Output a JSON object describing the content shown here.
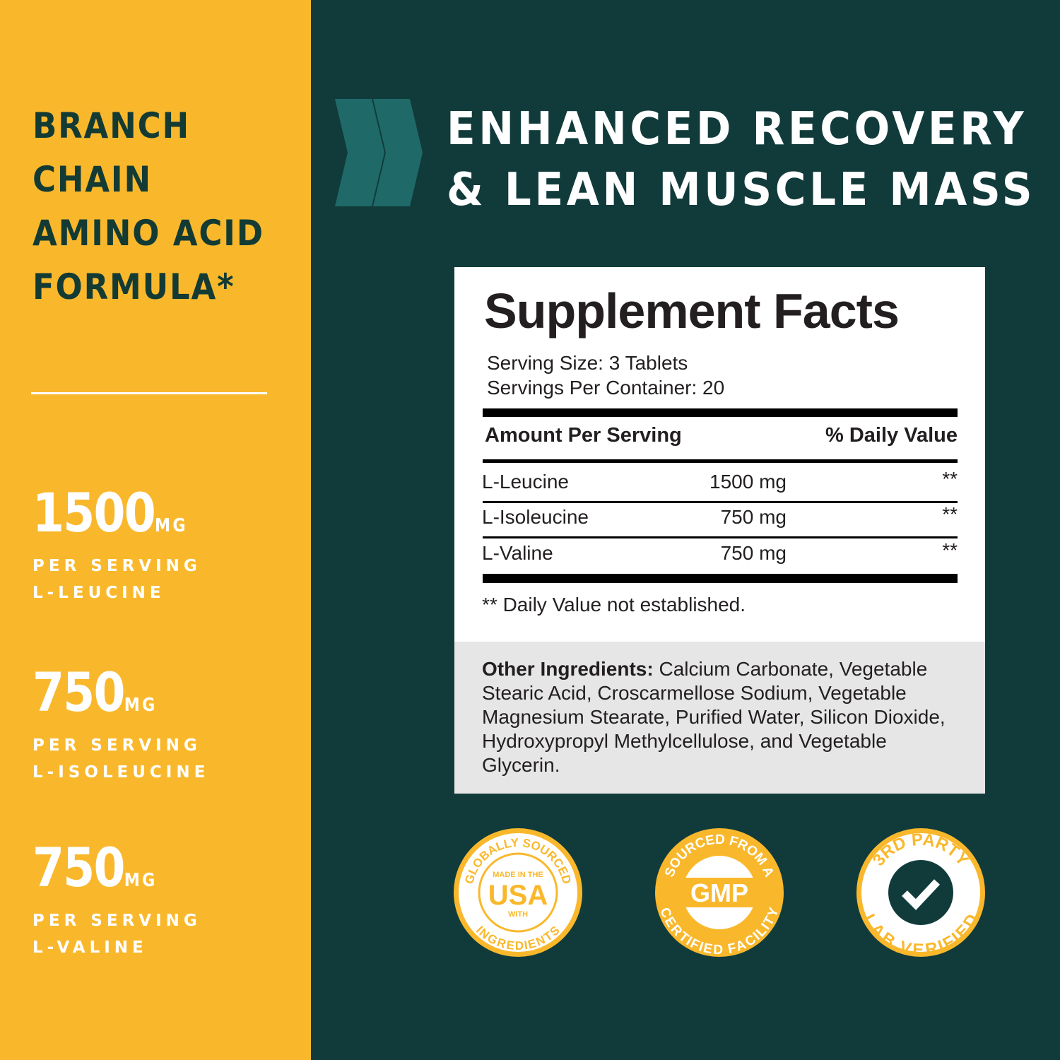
{
  "left": {
    "headline": [
      "BRANCH",
      "CHAIN",
      "AMINO ACID",
      "FORMULA*"
    ],
    "stats": [
      {
        "amount": "1500",
        "unit": "MG",
        "line1": "PER SERVING",
        "line2": "L-LEUCINE"
      },
      {
        "amount": "750",
        "unit": "MG",
        "line1": "PER SERVING",
        "line2": "L-ISOLEUCINE"
      },
      {
        "amount": "750",
        "unit": "MG",
        "line1": "PER SERVING",
        "line2": "L-VALINE"
      }
    ]
  },
  "title": {
    "line1": "ENHANCED RECOVERY",
    "line2": "& LEAN MUSCLE MASS"
  },
  "facts": {
    "heading": "Supplement Facts",
    "serving_size": "Serving Size: 3 Tablets",
    "servings_per_container": "Servings Per Container: 20",
    "col_amount": "Amount Per Serving",
    "col_dv": "% Daily Value",
    "rows": [
      {
        "name": "L-Leucine",
        "amount": "1500 mg",
        "dv": "**"
      },
      {
        "name": "L-Isoleucine",
        "amount": "750 mg",
        "dv": "**"
      },
      {
        "name": "L-Valine",
        "amount": "750 mg",
        "dv": "**"
      }
    ],
    "footnote": "** Daily Value not established.",
    "other_label": "Other Ingredients:",
    "other_text": " Calcium Carbonate, Vegetable Stearic Acid, Croscarmellose Sodium, Vegetable Magnesium Stearate, Purified Water, Silicon Dioxide, Hydroxypropyl Methylcellulose, and Vegetable Glycerin."
  },
  "badges": {
    "usa": {
      "top": "GLOBALLY SOURCED",
      "bottom": "INGREDIENTS",
      "l1": "MADE IN THE",
      "l2": "USA",
      "l3": "WITH"
    },
    "gmp": {
      "top": "SOURCED FROM A",
      "bottom": "CERTIFIED FACILITY",
      "center": "GMP"
    },
    "lab": {
      "top": "3RD PARTY",
      "bottom": "LAB VERIFIED"
    }
  },
  "colors": {
    "yellow": "#f9b82c",
    "teal_dark": "#113b3b",
    "chevron": "#1f6a68",
    "ink": "#133b34"
  }
}
